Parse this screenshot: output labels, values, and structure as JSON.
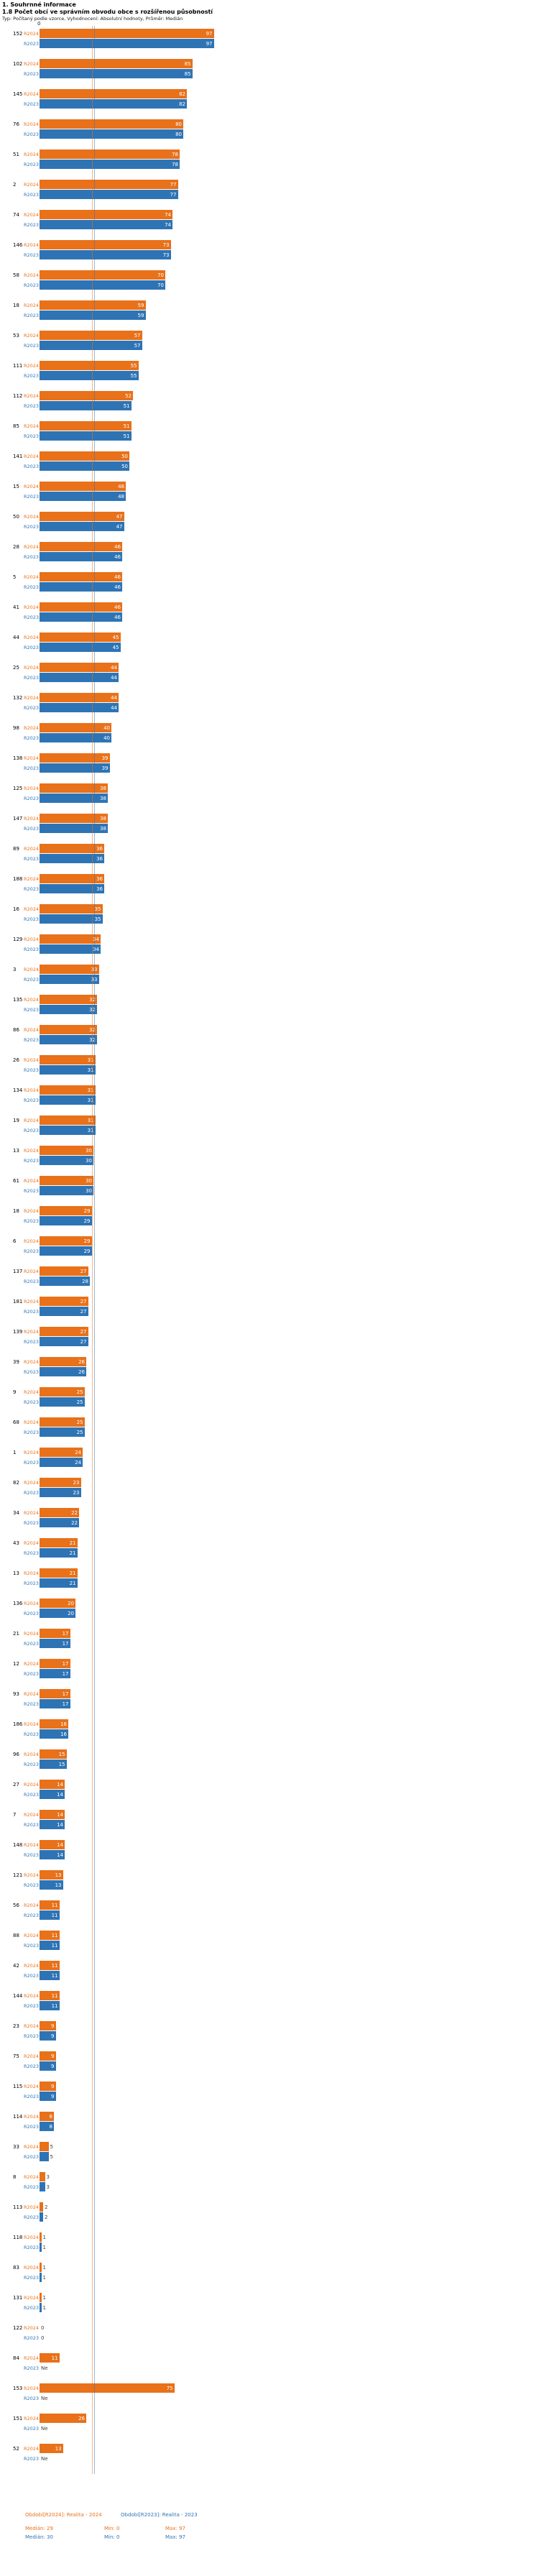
{
  "header": {
    "title": "1. Souhrnné informace",
    "subtitle": "1.8 Počet obcí ve správním obvodu obce s rozšířenou působností",
    "meta": "Typ: Počítaný podle vzorce, Vyhodnocení: Absolutní hodnoty, Průměr: Medián"
  },
  "chart_data": {
    "type": "bar",
    "orientation": "horizontal",
    "null_label": "Ne",
    "value_axis": {
      "min": 0,
      "zero_label": "0"
    },
    "legend_position": "bottom",
    "categories": [
      "152",
      "102",
      "145",
      "76",
      "51",
      "2",
      "74",
      "146",
      "58",
      "18",
      "53",
      "111",
      "112",
      "85",
      "141",
      "15",
      "50",
      "28",
      "5",
      "41",
      "44",
      "25",
      "132",
      "98",
      "138",
      "125",
      "147",
      "89",
      "188",
      "16",
      "129",
      "3",
      "135",
      "86",
      "26",
      "134",
      "19",
      "13",
      "61",
      "18",
      "6",
      "137",
      "181",
      "139",
      "39",
      "9",
      "68",
      "1",
      "82",
      "34",
      "43",
      "13",
      "136",
      "21",
      "12",
      "93",
      "186",
      "96",
      "27",
      "7",
      "148",
      "121",
      "56",
      "88",
      "42",
      "144",
      "23",
      "75",
      "115",
      "114",
      "33",
      "8",
      "113",
      "118",
      "83",
      "131",
      "122",
      "84",
      "153",
      "151",
      "52"
    ],
    "series": [
      {
        "name": "Období[R2024]: Realita - 2024",
        "short_label": "R2024",
        "color": "#e8711a",
        "median": 29,
        "min": 0,
        "max": 97,
        "values": [
          97,
          85,
          82,
          80,
          78,
          77,
          74,
          73,
          70,
          59,
          57,
          55,
          52,
          51,
          50,
          48,
          47,
          46,
          46,
          46,
          45,
          44,
          44,
          40,
          39,
          38,
          38,
          36,
          36,
          35,
          34,
          33,
          32,
          32,
          31,
          31,
          31,
          30,
          30,
          29,
          29,
          27,
          27,
          27,
          26,
          25,
          25,
          24,
          23,
          22,
          21,
          21,
          20,
          17,
          17,
          17,
          16,
          15,
          14,
          14,
          14,
          13,
          11,
          11,
          11,
          11,
          9,
          9,
          9,
          8,
          5,
          3,
          2,
          1,
          1,
          1,
          0,
          11,
          75,
          26,
          13
        ]
      },
      {
        "name": "Období[R2023]: Realita - 2023",
        "short_label": "R2023",
        "color": "#2e74b5",
        "median": 30,
        "min": 0,
        "max": 97,
        "values": [
          97,
          85,
          82,
          80,
          78,
          77,
          74,
          73,
          70,
          59,
          57,
          55,
          51,
          51,
          50,
          48,
          47,
          46,
          46,
          46,
          45,
          44,
          44,
          40,
          39,
          38,
          38,
          36,
          36,
          35,
          34,
          33,
          32,
          32,
          31,
          31,
          31,
          30,
          30,
          29,
          29,
          28,
          27,
          27,
          26,
          25,
          25,
          24,
          23,
          22,
          21,
          21,
          20,
          17,
          17,
          17,
          16,
          15,
          14,
          14,
          14,
          13,
          11,
          11,
          11,
          11,
          9,
          9,
          9,
          8,
          5,
          3,
          2,
          1,
          1,
          1,
          0,
          null,
          null,
          null,
          null
        ]
      }
    ]
  },
  "footer": {
    "legend": [
      {
        "name": "Období[R2024]: Realita - 2024",
        "median": "Medián: 29",
        "min": "Min: 0",
        "max": "Max: 97",
        "color": "#e8711a"
      },
      {
        "name": "Období[R2023]: Realita - 2023",
        "median": "Medián: 30",
        "min": "Min: 0",
        "max": "Max: 97",
        "color": "#2e74b5"
      }
    ]
  }
}
